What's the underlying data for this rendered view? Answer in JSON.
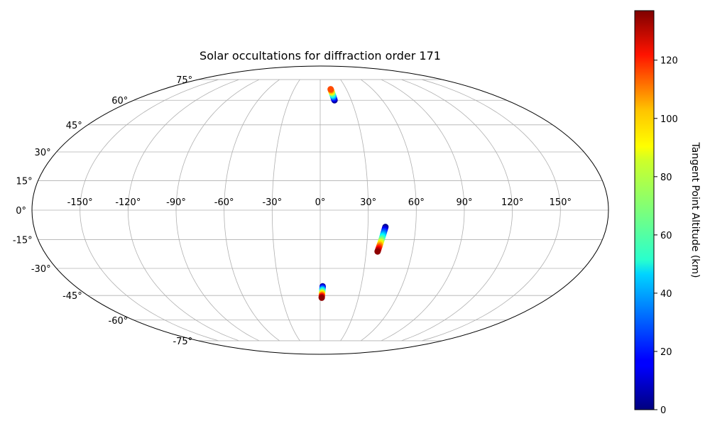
{
  "chart_data": {
    "type": "scatter",
    "projection": "mollweide",
    "title": "Solar occultations for diffraction order 171",
    "grid": true,
    "longitude_ticks": [
      "-150°",
      "-120°",
      "-90°",
      "-60°",
      "-30°",
      "0°",
      "30°",
      "60°",
      "90°",
      "120°",
      "150°"
    ],
    "latitude_ticks": [
      "-75°",
      "-60°",
      "-45°",
      "-30°",
      "-15°",
      "0°",
      "15°",
      "30°",
      "45°",
      "60°",
      "75°"
    ],
    "colorbar": {
      "label": "Tangent Point Altitude (km)",
      "colormap": "jet",
      "range": [
        0,
        137
      ],
      "ticks": [
        "0",
        "20",
        "40",
        "60",
        "80",
        "100",
        "120"
      ]
    },
    "series": [
      {
        "points": [
          {
            "lon": 12.0,
            "lat": 67.6,
            "alt": 110
          },
          {
            "lon": 12.1,
            "lat": 67.2,
            "alt": 104
          },
          {
            "lon": 12.2,
            "lat": 66.8,
            "alt": 98
          },
          {
            "lon": 12.3,
            "lat": 66.3,
            "alt": 92
          },
          {
            "lon": 12.4,
            "lat": 65.9,
            "alt": 86
          },
          {
            "lon": 12.5,
            "lat": 65.5,
            "alt": 80
          },
          {
            "lon": 12.6,
            "lat": 65.1,
            "alt": 73
          },
          {
            "lon": 12.7,
            "lat": 64.7,
            "alt": 67
          },
          {
            "lon": 12.8,
            "lat": 64.3,
            "alt": 61
          },
          {
            "lon": 12.9,
            "lat": 63.9,
            "alt": 55
          },
          {
            "lon": 13.0,
            "lat": 63.5,
            "alt": 49
          },
          {
            "lon": 13.1,
            "lat": 63.1,
            "alt": 43
          },
          {
            "lon": 13.2,
            "lat": 62.7,
            "alt": 37
          },
          {
            "lon": 13.3,
            "lat": 62.3,
            "alt": 31
          },
          {
            "lon": 13.4,
            "lat": 61.9,
            "alt": 25
          },
          {
            "lon": 13.5,
            "lat": 61.4,
            "alt": 19
          },
          {
            "lon": 13.6,
            "lat": 61.0,
            "alt": 13
          },
          {
            "lon": 13.7,
            "lat": 60.5,
            "alt": 7
          },
          {
            "lon": 13.8,
            "lat": 60.0,
            "alt": 2
          }
        ]
      },
      {
        "points": [
          {
            "lon": 41.0,
            "lat": -8.5,
            "alt": 2
          },
          {
            "lon": 40.8,
            "lat": -9.2,
            "alt": 9
          },
          {
            "lon": 40.6,
            "lat": -9.9,
            "alt": 16
          },
          {
            "lon": 40.4,
            "lat": -10.6,
            "alt": 23
          },
          {
            "lon": 40.2,
            "lat": -11.3,
            "alt": 30
          },
          {
            "lon": 40.0,
            "lat": -12.0,
            "alt": 37
          },
          {
            "lon": 39.8,
            "lat": -12.7,
            "alt": 44
          },
          {
            "lon": 39.6,
            "lat": -13.4,
            "alt": 51
          },
          {
            "lon": 39.4,
            "lat": -14.1,
            "alt": 58
          },
          {
            "lon": 39.2,
            "lat": -14.8,
            "alt": 65
          },
          {
            "lon": 39.0,
            "lat": -15.5,
            "alt": 72
          },
          {
            "lon": 38.8,
            "lat": -16.2,
            "alt": 80
          },
          {
            "lon": 38.6,
            "lat": -16.9,
            "alt": 88
          },
          {
            "lon": 38.4,
            "lat": -17.6,
            "alt": 96
          },
          {
            "lon": 38.2,
            "lat": -18.3,
            "alt": 104
          },
          {
            "lon": 38.0,
            "lat": -19.0,
            "alt": 112
          },
          {
            "lon": 37.8,
            "lat": -19.7,
            "alt": 120
          },
          {
            "lon": 37.6,
            "lat": -20.4,
            "alt": 128
          },
          {
            "lon": 37.4,
            "lat": -21.1,
            "alt": 135
          }
        ]
      },
      {
        "points": [
          {
            "lon": 1.8,
            "lat": -39.8,
            "alt": 5
          },
          {
            "lon": 1.8,
            "lat": -40.3,
            "alt": 15
          },
          {
            "lon": 1.7,
            "lat": -40.8,
            "alt": 25
          },
          {
            "lon": 1.7,
            "lat": -41.3,
            "alt": 35
          },
          {
            "lon": 1.6,
            "lat": -41.8,
            "alt": 45
          },
          {
            "lon": 1.6,
            "lat": -42.3,
            "alt": 55
          },
          {
            "lon": 1.5,
            "lat": -42.8,
            "alt": 65
          },
          {
            "lon": 1.5,
            "lat": -43.3,
            "alt": 75
          },
          {
            "lon": 1.4,
            "lat": -43.8,
            "alt": 85
          },
          {
            "lon": 1.4,
            "lat": -44.3,
            "alt": 95
          },
          {
            "lon": 1.3,
            "lat": -44.8,
            "alt": 105
          },
          {
            "lon": 1.3,
            "lat": -45.3,
            "alt": 115
          },
          {
            "lon": 1.2,
            "lat": -45.8,
            "alt": 125
          },
          {
            "lon": 1.2,
            "lat": -46.3,
            "alt": 135
          }
        ]
      }
    ]
  }
}
